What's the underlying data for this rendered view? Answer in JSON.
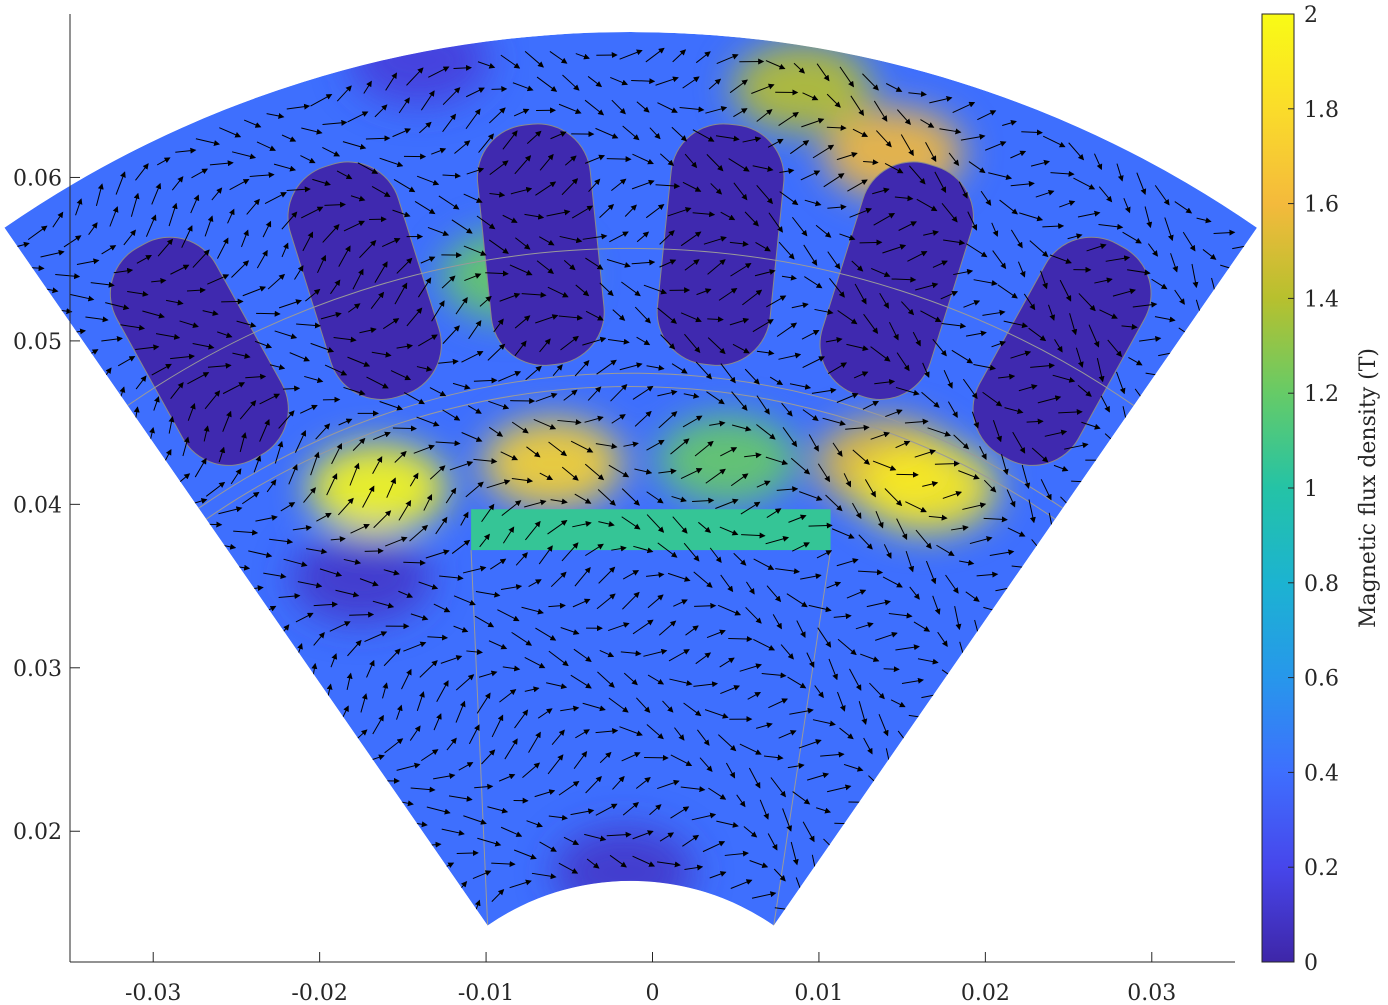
{
  "chart_data": {
    "type": "heatmap",
    "title": "",
    "xlabel": "",
    "ylabel": "",
    "xlim": [
      -0.035,
      0.035
    ],
    "ylim": [
      0.012,
      0.07
    ],
    "x_ticks": [
      -0.03,
      -0.02,
      -0.01,
      0,
      0.01,
      0.02,
      0.03
    ],
    "x_tick_labels": [
      "-0.03",
      "-0.02",
      "-0.01",
      "0",
      "0.01",
      "0.02",
      "0.03"
    ],
    "y_ticks": [
      0.02,
      0.03,
      0.04,
      0.05,
      0.06
    ],
    "y_tick_labels": [
      "0.02",
      "0.03",
      "0.04",
      "0.05",
      "0.06"
    ],
    "grid": false,
    "colorbar": {
      "label": "Magnetic flux density (T)",
      "range": [
        0,
        2
      ],
      "ticks": [
        0,
        0.2,
        0.4,
        0.6,
        0.8,
        1,
        1.2,
        1.4,
        1.6,
        1.8,
        2
      ],
      "tick_labels": [
        "0",
        "0.2",
        "0.4",
        "0.6",
        "0.8",
        "1",
        "1.2",
        "1.4",
        "1.6",
        "1.8",
        "2"
      ],
      "colormap": "parula",
      "colormap_stops": [
        "#3e26a8",
        "#4746eb",
        "#3e6ffe",
        "#2797eb",
        "#1cb3d1",
        "#24c3a6",
        "#66cb67",
        "#b7c02e",
        "#f4ba3c",
        "#fadc2a",
        "#f9fb15"
      ],
      "position": "right"
    },
    "geometry": {
      "center_x": -0.00131,
      "center_y": 0.00159,
      "outer_radius": 0.0661,
      "inner_radius": 0.0151,
      "half_angle_deg": 34.7,
      "stator_inner_radius": 0.0456,
      "airgap_outer_radius": 0.0448,
      "magnet": {
        "x": [
          -0.0109,
          0.0107
        ],
        "y": [
          0.0372,
          0.0397
        ],
        "flux_density": 1.05
      },
      "slot_count": 6
    },
    "field_hotspots": [
      {
        "x": -0.006,
        "y": 0.0425,
        "flux_density": 1.75
      },
      {
        "x": 0.0045,
        "y": 0.0427,
        "flux_density": 1.2
      },
      {
        "x": 0.014,
        "y": 0.0425,
        "flux_density": 1.55
      },
      {
        "x": 0.0145,
        "y": 0.0615,
        "flux_density": 1.6
      },
      {
        "x": 0.009,
        "y": 0.0655,
        "flux_density": 1.4
      },
      {
        "x": -0.0085,
        "y": 0.054,
        "flux_density": 1.2
      },
      {
        "x": -0.0165,
        "y": 0.041,
        "flux_density": 2.0
      },
      {
        "x": 0.0165,
        "y": 0.041,
        "flux_density": 1.9
      },
      {
        "x": -0.0017,
        "y": 0.0175,
        "flux_density": 0.1
      },
      {
        "x": -0.0175,
        "y": 0.0355,
        "flux_density": 0.1
      },
      {
        "x": -0.014,
        "y": 0.0672,
        "flux_density": 0.15
      }
    ]
  }
}
